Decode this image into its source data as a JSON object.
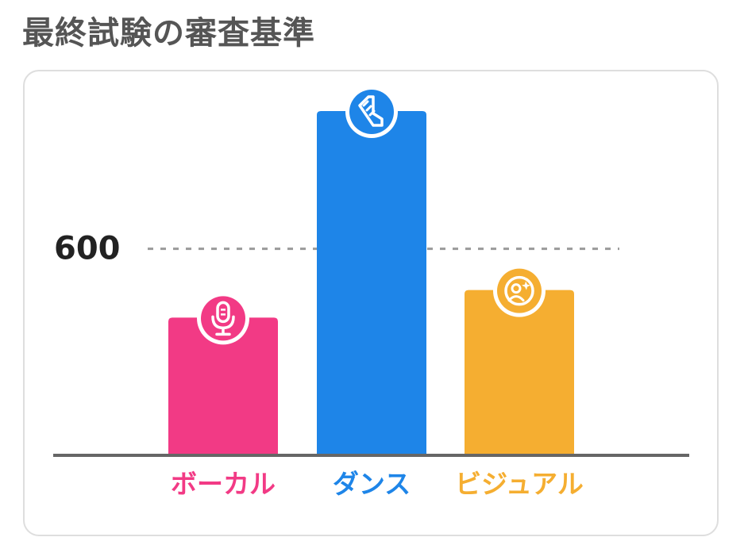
{
  "title": "最終試験の審査基準",
  "chart_data": {
    "type": "bar",
    "categories": [
      "ボーカル",
      "ダンス",
      "ビジュアル"
    ],
    "values": [
      400,
      1000,
      480
    ],
    "colors": [
      "#f23a85",
      "#1e85e8",
      "#f5ae31"
    ],
    "icons": [
      "microphone-icon",
      "dance-step-icon",
      "visual-star-icon"
    ],
    "reference_line": {
      "value": 600,
      "label": "600"
    },
    "ylim": [
      0,
      1000
    ],
    "grid": false,
    "legend": "none"
  }
}
